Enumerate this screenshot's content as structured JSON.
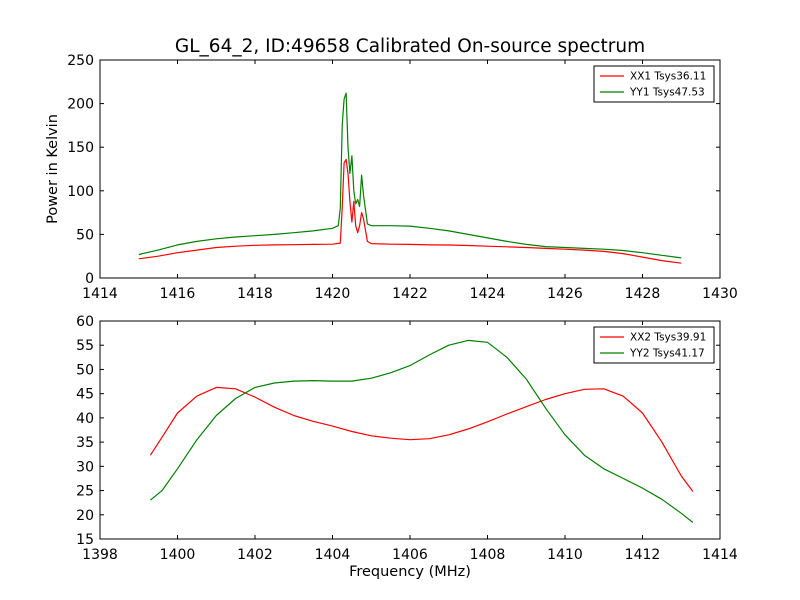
{
  "title": "GL_64_2, ID:49658 Calibrated On-source spectrum",
  "chart_data": [
    {
      "type": "line",
      "title": "GL_64_2, ID:49658 Calibrated On-source spectrum",
      "xlabel": "",
      "ylabel": "Power in Kelvin",
      "xlim": [
        1414,
        1430
      ],
      "ylim": [
        0,
        250
      ],
      "xticks": [
        1414,
        1416,
        1418,
        1420,
        1422,
        1424,
        1426,
        1428,
        1430
      ],
      "yticks": [
        0,
        50,
        100,
        150,
        200,
        250
      ],
      "grid": false,
      "legend_position": "top-right",
      "series": [
        {
          "name": "XX1 Tsys36.11",
          "color": "#ff0000",
          "points": [
            [
              1415.0,
              22
            ],
            [
              1415.5,
              25
            ],
            [
              1416.0,
              29
            ],
            [
              1416.5,
              32
            ],
            [
              1417.0,
              35
            ],
            [
              1417.5,
              36.5
            ],
            [
              1418.0,
              37.5
            ],
            [
              1418.5,
              38
            ],
            [
              1419.0,
              38.2
            ],
            [
              1419.5,
              38.5
            ],
            [
              1420.0,
              38.8
            ],
            [
              1420.2,
              40
            ],
            [
              1420.25,
              80
            ],
            [
              1420.3,
              132
            ],
            [
              1420.35,
              136
            ],
            [
              1420.4,
              120
            ],
            [
              1420.45,
              88
            ],
            [
              1420.5,
              64
            ],
            [
              1420.55,
              88
            ],
            [
              1420.6,
              60
            ],
            [
              1420.65,
              52
            ],
            [
              1420.7,
              60
            ],
            [
              1420.75,
              75
            ],
            [
              1420.8,
              68
            ],
            [
              1420.9,
              42
            ],
            [
              1421.0,
              39.5
            ],
            [
              1421.5,
              38.8
            ],
            [
              1422.0,
              38.5
            ],
            [
              1422.5,
              38
            ],
            [
              1423.0,
              37.8
            ],
            [
              1423.5,
              37.3
            ],
            [
              1424.0,
              36.5
            ],
            [
              1424.5,
              35.8
            ],
            [
              1425.0,
              35
            ],
            [
              1425.5,
              34
            ],
            [
              1426.0,
              33
            ],
            [
              1426.5,
              32
            ],
            [
              1427.0,
              30.5
            ],
            [
              1427.5,
              28
            ],
            [
              1428.0,
              24
            ],
            [
              1428.5,
              20
            ],
            [
              1429.0,
              17
            ]
          ]
        },
        {
          "name": "YY1 Tsys47.53",
          "color": "#008000",
          "points": [
            [
              1415.0,
              27
            ],
            [
              1415.5,
              32
            ],
            [
              1416.0,
              38
            ],
            [
              1416.5,
              42
            ],
            [
              1417.0,
              45
            ],
            [
              1417.5,
              47
            ],
            [
              1418.0,
              48.5
            ],
            [
              1418.5,
              50
            ],
            [
              1419.0,
              52
            ],
            [
              1419.5,
              54
            ],
            [
              1420.0,
              57
            ],
            [
              1420.15,
              60
            ],
            [
              1420.2,
              80
            ],
            [
              1420.25,
              175
            ],
            [
              1420.3,
              205
            ],
            [
              1420.35,
              212
            ],
            [
              1420.4,
              150
            ],
            [
              1420.45,
              120
            ],
            [
              1420.5,
              140
            ],
            [
              1420.55,
              100
            ],
            [
              1420.6,
              85
            ],
            [
              1420.65,
              90
            ],
            [
              1420.7,
              82
            ],
            [
              1420.75,
              118
            ],
            [
              1420.8,
              95
            ],
            [
              1420.9,
              62
            ],
            [
              1421.0,
              60
            ],
            [
              1421.5,
              60
            ],
            [
              1422.0,
              59.5
            ],
            [
              1422.5,
              57
            ],
            [
              1423.0,
              54
            ],
            [
              1423.5,
              50
            ],
            [
              1424.0,
              46
            ],
            [
              1424.5,
              42
            ],
            [
              1425.0,
              38.5
            ],
            [
              1425.5,
              36
            ],
            [
              1426.0,
              35
            ],
            [
              1426.5,
              34
            ],
            [
              1427.0,
              33
            ],
            [
              1427.5,
              31.5
            ],
            [
              1428.0,
              29
            ],
            [
              1428.5,
              26
            ],
            [
              1429.0,
              23
            ]
          ]
        }
      ]
    },
    {
      "type": "line",
      "title": "",
      "xlabel": "Frequency (MHz)",
      "ylabel": "",
      "xlim": [
        1398,
        1414
      ],
      "ylim": [
        15,
        60
      ],
      "xticks": [
        1398,
        1400,
        1402,
        1404,
        1406,
        1408,
        1410,
        1412,
        1414
      ],
      "yticks": [
        15,
        20,
        25,
        30,
        35,
        40,
        45,
        50,
        55,
        60
      ],
      "grid": false,
      "legend_position": "top-right",
      "series": [
        {
          "name": "XX2 Tsys39.91",
          "color": "#ff0000",
          "points": [
            [
              1399.3,
              32.3
            ],
            [
              1399.6,
              36
            ],
            [
              1400.0,
              41
            ],
            [
              1400.5,
              44.5
            ],
            [
              1401.0,
              46.3
            ],
            [
              1401.5,
              46
            ],
            [
              1402.0,
              44.3
            ],
            [
              1402.5,
              42.2
            ],
            [
              1403.0,
              40.5
            ],
            [
              1403.5,
              39.3
            ],
            [
              1404.0,
              38.3
            ],
            [
              1404.5,
              37.2
            ],
            [
              1405.0,
              36.3
            ],
            [
              1405.5,
              35.8
            ],
            [
              1406.0,
              35.5
            ],
            [
              1406.5,
              35.7
            ],
            [
              1407.0,
              36.5
            ],
            [
              1407.5,
              37.7
            ],
            [
              1408.0,
              39.2
            ],
            [
              1408.5,
              40.8
            ],
            [
              1409.0,
              42.3
            ],
            [
              1409.5,
              43.8
            ],
            [
              1410.0,
              45
            ],
            [
              1410.5,
              45.9
            ],
            [
              1411.0,
              46
            ],
            [
              1411.5,
              44.5
            ],
            [
              1412.0,
              41
            ],
            [
              1412.5,
              35
            ],
            [
              1413.0,
              28
            ],
            [
              1413.3,
              24.8
            ]
          ]
        },
        {
          "name": "YY2 Tsys41.17",
          "color": "#008000",
          "points": [
            [
              1399.3,
              23
            ],
            [
              1399.6,
              25
            ],
            [
              1400.0,
              29.5
            ],
            [
              1400.5,
              35.5
            ],
            [
              1401.0,
              40.5
            ],
            [
              1401.5,
              44
            ],
            [
              1402.0,
              46.3
            ],
            [
              1402.5,
              47.2
            ],
            [
              1403.0,
              47.6
            ],
            [
              1403.5,
              47.7
            ],
            [
              1404.0,
              47.6
            ],
            [
              1404.5,
              47.6
            ],
            [
              1405.0,
              48.2
            ],
            [
              1405.5,
              49.3
            ],
            [
              1406.0,
              50.8
            ],
            [
              1406.5,
              53
            ],
            [
              1407.0,
              55
            ],
            [
              1407.5,
              56
            ],
            [
              1408.0,
              55.6
            ],
            [
              1408.5,
              52.5
            ],
            [
              1409.0,
              48
            ],
            [
              1409.5,
              42
            ],
            [
              1410.0,
              36.5
            ],
            [
              1410.5,
              32.3
            ],
            [
              1411.0,
              29.5
            ],
            [
              1411.5,
              27.5
            ],
            [
              1412.0,
              25.5
            ],
            [
              1412.5,
              23.2
            ],
            [
              1413.0,
              20.3
            ],
            [
              1413.3,
              18.4
            ]
          ]
        }
      ]
    }
  ]
}
